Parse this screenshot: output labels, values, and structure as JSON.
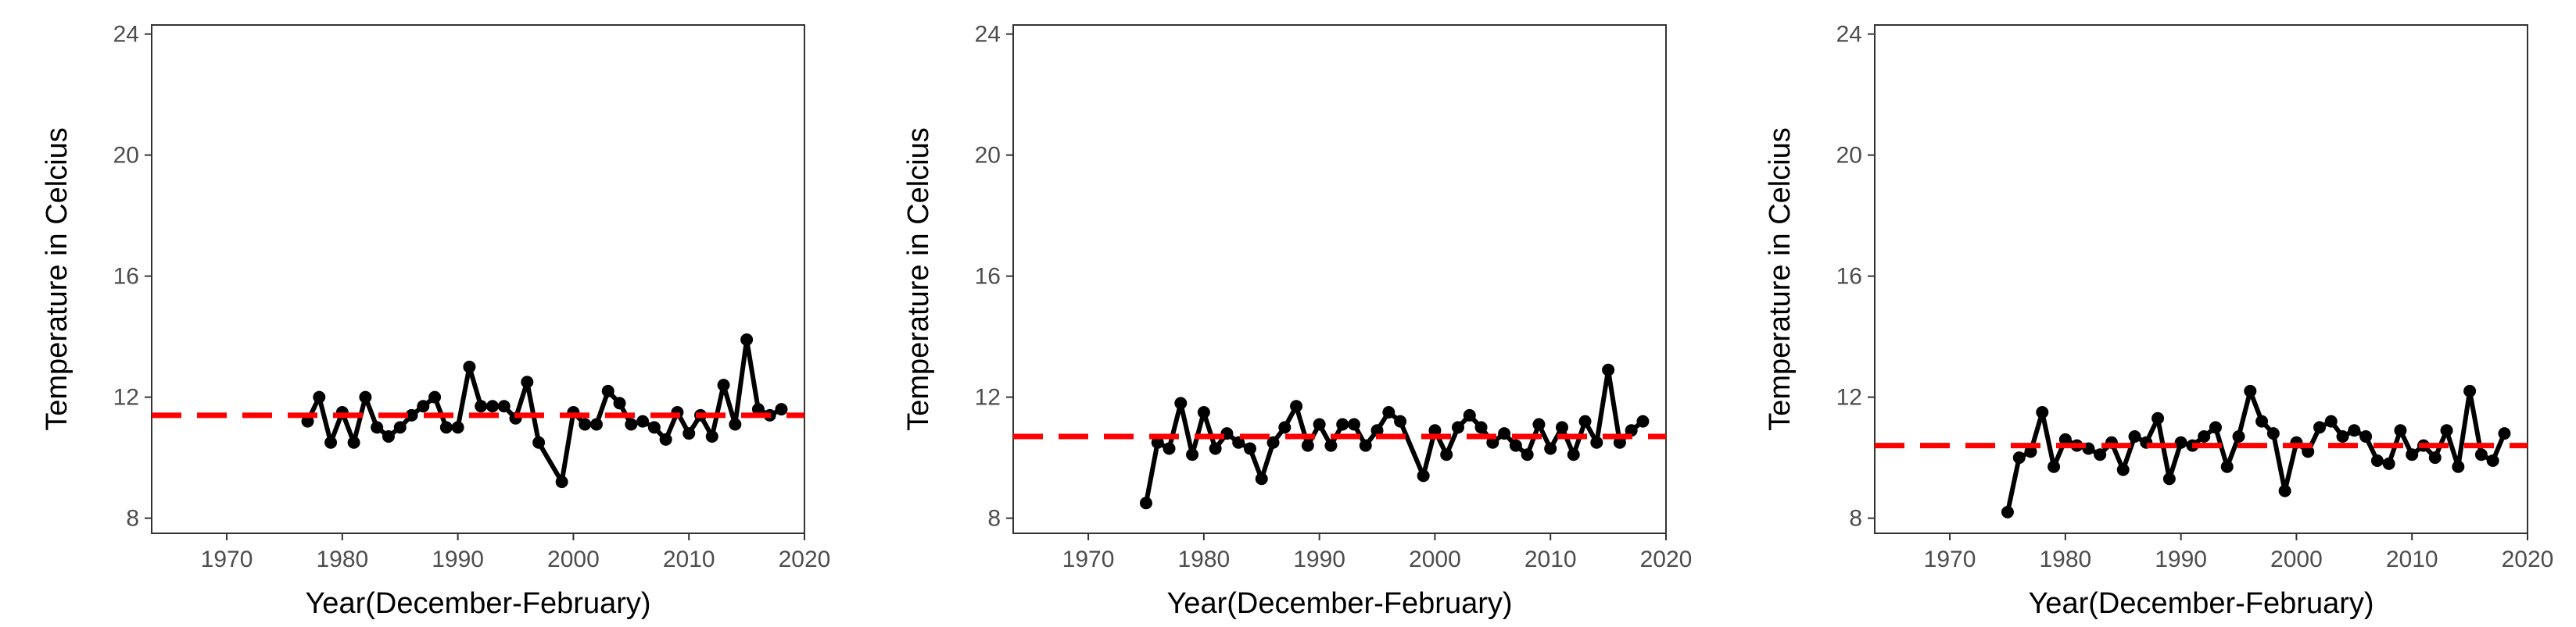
{
  "chart_data": [
    {
      "type": "line",
      "xlabel": "Year(December-February)",
      "ylabel": "Temperature in Celcius",
      "xlim": [
        1963.5,
        2020
      ],
      "ylim": [
        7.5,
        24.3
      ],
      "xticks": [
        1970,
        1980,
        1990,
        2000,
        2010,
        2020
      ],
      "yticks": [
        8,
        12,
        16,
        20,
        24
      ],
      "grid": false,
      "colors": {
        "series": "#000000",
        "mean": "#ff0000"
      },
      "mean_line": 11.4,
      "series": [
        {
          "x": [
            1977,
            1978,
            1979,
            1980,
            1981,
            1982,
            1983,
            1984,
            1985,
            1986,
            1987,
            1988,
            1989,
            1990,
            1991,
            1992,
            1993,
            1994,
            1995,
            1996,
            1997,
            1999,
            2000,
            2001,
            2002,
            2003,
            2004,
            2005,
            2006,
            2007,
            2008,
            2009,
            2010,
            2011,
            2012,
            2013,
            2014,
            2015,
            2016,
            2017,
            2018
          ],
          "values": [
            11.2,
            12.0,
            10.5,
            11.5,
            10.5,
            12.0,
            11.0,
            10.7,
            11.0,
            11.4,
            11.7,
            12.0,
            11.0,
            11.0,
            13.0,
            11.7,
            11.7,
            11.7,
            11.3,
            12.5,
            10.5,
            9.2,
            11.5,
            11.1,
            11.1,
            12.2,
            11.8,
            11.1,
            11.2,
            11.0,
            10.6,
            11.5,
            10.8,
            11.4,
            10.7,
            12.4,
            11.1,
            13.9,
            11.6,
            11.4,
            11.6
          ]
        }
      ]
    },
    {
      "type": "line",
      "xlabel": "Year(December-February)",
      "ylabel": "Temperature in Celcius",
      "xlim": [
        1963.5,
        2020
      ],
      "ylim": [
        7.5,
        24.3
      ],
      "xticks": [
        1970,
        1980,
        1990,
        2000,
        2010,
        2020
      ],
      "yticks": [
        8,
        12,
        16,
        20,
        24
      ],
      "grid": false,
      "colors": {
        "series": "#000000",
        "mean": "#ff0000"
      },
      "mean_line": 10.7,
      "series": [
        {
          "x": [
            1975,
            1976,
            1977,
            1978,
            1979,
            1980,
            1981,
            1982,
            1983,
            1984,
            1985,
            1986,
            1987,
            1988,
            1989,
            1990,
            1991,
            1992,
            1993,
            1994,
            1995,
            1996,
            1997,
            1999,
            2000,
            2001,
            2002,
            2003,
            2004,
            2005,
            2006,
            2007,
            2008,
            2009,
            2010,
            2011,
            2012,
            2013,
            2014,
            2015,
            2016,
            2017,
            2018
          ],
          "values": [
            8.5,
            10.5,
            10.3,
            11.8,
            10.1,
            11.5,
            10.3,
            10.8,
            10.5,
            10.3,
            9.3,
            10.5,
            11.0,
            11.7,
            10.4,
            11.1,
            10.4,
            11.1,
            11.1,
            10.4,
            10.9,
            11.5,
            11.2,
            9.4,
            10.9,
            10.1,
            11.0,
            11.4,
            11.0,
            10.5,
            10.8,
            10.4,
            10.1,
            11.1,
            10.3,
            11.0,
            10.1,
            11.2,
            10.5,
            12.9,
            10.5,
            10.9,
            11.2
          ]
        }
      ]
    },
    {
      "type": "line",
      "xlabel": "Year(December-February)",
      "ylabel": "Temperature in Celcius",
      "xlim": [
        1963.5,
        2020
      ],
      "ylim": [
        7.5,
        24.3
      ],
      "xticks": [
        1970,
        1980,
        1990,
        2000,
        2010,
        2020
      ],
      "yticks": [
        8,
        12,
        16,
        20,
        24
      ],
      "grid": false,
      "colors": {
        "series": "#000000",
        "mean": "#ff0000"
      },
      "mean_line": 10.4,
      "series": [
        {
          "x": [
            1975,
            1976,
            1977,
            1978,
            1979,
            1980,
            1981,
            1982,
            1983,
            1984,
            1985,
            1986,
            1987,
            1988,
            1989,
            1990,
            1991,
            1992,
            1993,
            1994,
            1995,
            1996,
            1997,
            1998,
            1999,
            2000,
            2001,
            2002,
            2003,
            2004,
            2005,
            2006,
            2007,
            2008,
            2009,
            2010,
            2011,
            2012,
            2013,
            2014,
            2015,
            2016,
            2017,
            2018
          ],
          "values": [
            8.2,
            10.0,
            10.2,
            11.5,
            9.7,
            10.6,
            10.4,
            10.3,
            10.1,
            10.5,
            9.6,
            10.7,
            10.5,
            11.3,
            9.3,
            10.5,
            10.4,
            10.7,
            11.0,
            9.7,
            10.7,
            12.2,
            11.2,
            10.8,
            8.9,
            10.5,
            10.2,
            11.0,
            11.2,
            10.7,
            10.9,
            10.7,
            9.9,
            9.8,
            10.9,
            10.1,
            10.4,
            10.0,
            10.9,
            9.7,
            12.2,
            10.1,
            9.9,
            10.8
          ]
        }
      ]
    }
  ]
}
